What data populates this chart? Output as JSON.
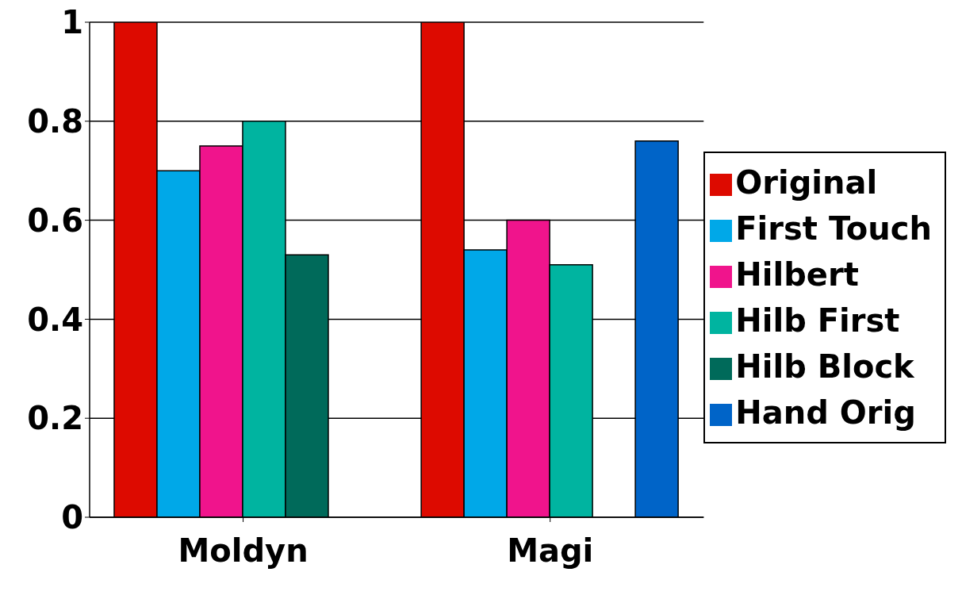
{
  "chart_data": {
    "type": "bar",
    "categories": [
      "Moldyn",
      "Magi"
    ],
    "series": [
      {
        "name": "Original",
        "color": "#dd0a00",
        "values": [
          1,
          1
        ]
      },
      {
        "name": "First Touch",
        "color": "#00a8e8",
        "values": [
          0.7,
          0.54
        ]
      },
      {
        "name": "Hilbert",
        "color": "#f0148c",
        "values": [
          0.75,
          0.6
        ]
      },
      {
        "name": "Hilb First",
        "color": "#00b4a0",
        "values": [
          0.8,
          0.51
        ]
      },
      {
        "name": "Hilb Block",
        "color": "#006a5a",
        "values": [
          0.53,
          null
        ]
      },
      {
        "name": "Hand Orig",
        "color": "#0064c8",
        "values": [
          null,
          0.76
        ]
      }
    ],
    "ylim": [
      0,
      1
    ],
    "yticks": [
      0,
      0.2,
      0.4,
      0.6,
      0.8,
      1
    ],
    "grid": "y",
    "legend": "right"
  }
}
